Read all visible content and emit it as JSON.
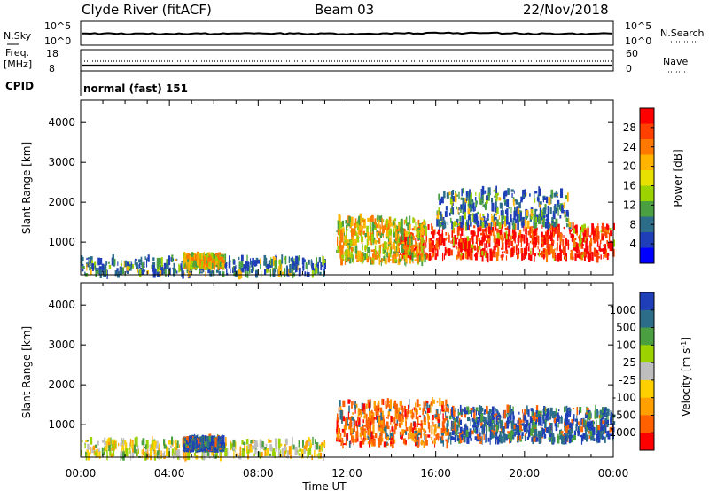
{
  "header": {
    "station": "Clyde River (fitACF)",
    "beam": "Beam 03",
    "date": "22/Nov/2018"
  },
  "top_panels": {
    "nsky_label": "N.Sky",
    "nsky_ticks": [
      "10^5",
      "10^0"
    ],
    "nsearch_label": "N.Search",
    "nsearch_ticks": [
      "10^5",
      "10^0"
    ],
    "freq_label_1": "Freq.",
    "freq_label_2": "[MHz]",
    "freq_ticks": [
      "18",
      "8"
    ],
    "nave_label": "Nave",
    "nave_ticks": [
      "60",
      "0"
    ],
    "cpid_label": "CPID",
    "cpid_value": "normal (fast) 151"
  },
  "chart_data": [
    {
      "type": "heatmap",
      "name": "power-panel",
      "ylabel": "Slant Range [km]",
      "yticks": [
        "1000",
        "2000",
        "3000",
        "4000"
      ],
      "ylim": [
        180,
        4560
      ],
      "xlim": [
        0,
        24
      ],
      "colorbar_label": "Power [dB]",
      "colorbar_ticks": [
        "28",
        "24",
        "20",
        "16",
        "12",
        "8",
        "4"
      ],
      "colorbar_colors": [
        "#ff0000",
        "#ff4000",
        "#ff7800",
        "#ffb400",
        "#e8e000",
        "#9cd200",
        "#4aa040",
        "#2c6e8a",
        "#1f3fb8",
        "#0000ff"
      ],
      "scatter_regions": [
        {
          "t0": 14.3,
          "t1": 24.0,
          "r0": 600,
          "r1": 1400,
          "level": "high"
        },
        {
          "t0": 11.5,
          "t1": 15.5,
          "r0": 500,
          "r1": 1600,
          "level": "mid"
        },
        {
          "t0": 0.0,
          "t1": 11.0,
          "r0": 180,
          "r1": 600,
          "level": "low"
        },
        {
          "t0": 4.6,
          "t1": 6.4,
          "r0": 400,
          "r1": 650,
          "level": "mid"
        },
        {
          "t0": 16.0,
          "t1": 22.0,
          "r0": 1400,
          "r1": 2300,
          "level": "low"
        }
      ]
    },
    {
      "type": "heatmap",
      "name": "velocity-panel",
      "ylabel": "Slant Range [km]",
      "yticks": [
        "1000",
        "2000",
        "3000",
        "4000"
      ],
      "ylim": [
        180,
        4560
      ],
      "xlim": [
        0,
        24
      ],
      "xticks": [
        "00:00",
        "04:00",
        "08:00",
        "12:00",
        "16:00",
        "20:00",
        "00:00"
      ],
      "xlabel": "Time UT",
      "colorbar_label": "Velocity [m s",
      "colorbar_label_sup": "-1",
      "colorbar_label_end": "]",
      "colorbar_ticks": [
        "1000",
        "500",
        "100",
        "25",
        "-25",
        "-100",
        "-500",
        "-1000"
      ],
      "colorbar_colors": [
        "#1f3fb8",
        "#2c6e8a",
        "#4aa040",
        "#9cd200",
        "#bebebe",
        "#ffd000",
        "#ffa000",
        "#ff6000",
        "#ff0000"
      ],
      "scatter_regions": [
        {
          "t0": 16.5,
          "t1": 24.0,
          "r0": 600,
          "r1": 1400,
          "level": "pos"
        },
        {
          "t0": 11.5,
          "t1": 16.5,
          "r0": 500,
          "r1": 1600,
          "level": "neg"
        },
        {
          "t0": 0.0,
          "t1": 11.0,
          "r0": 180,
          "r1": 600,
          "level": "mix"
        },
        {
          "t0": 4.6,
          "t1": 6.4,
          "r0": 400,
          "r1": 650,
          "level": "pos"
        }
      ]
    }
  ]
}
